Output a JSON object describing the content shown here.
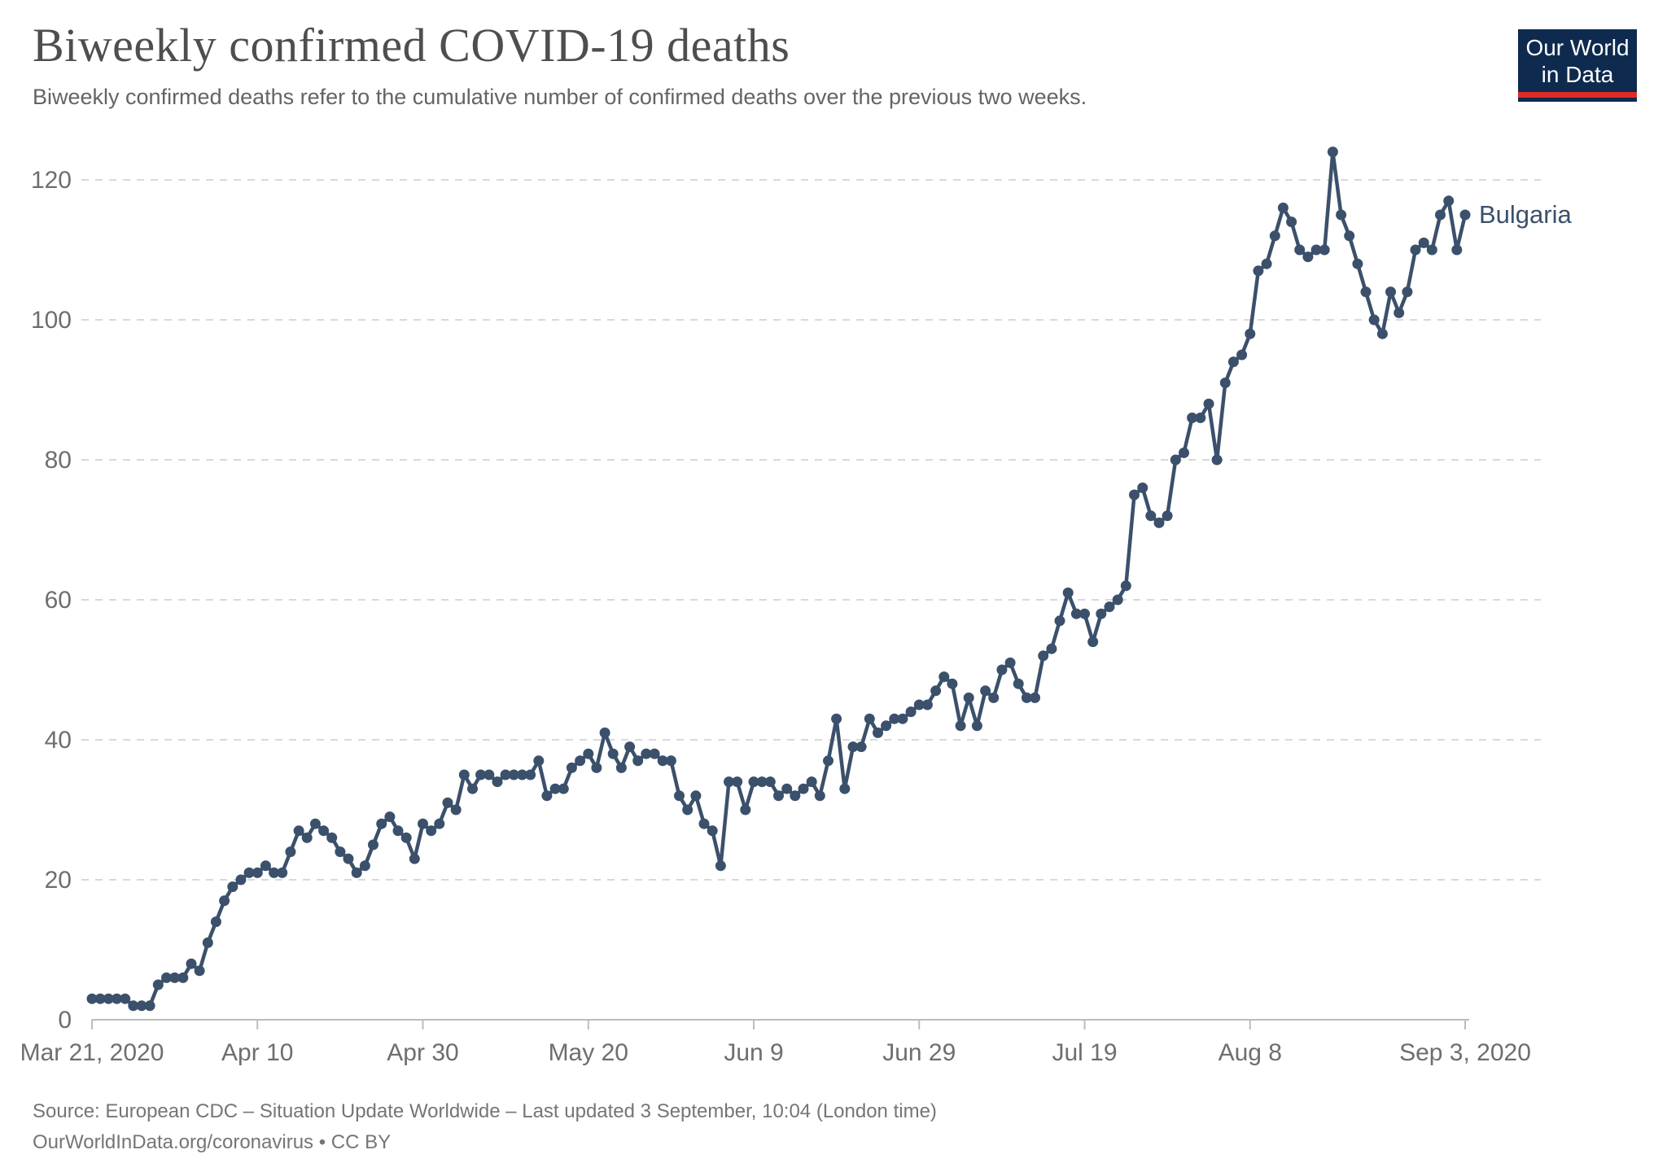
{
  "header": {
    "title": "Biweekly confirmed COVID-19 deaths",
    "subtitle": "Biweekly confirmed deaths refer to the cumulative number of confirmed deaths over the previous two weeks."
  },
  "logo": {
    "line1": "Our World",
    "line2": "in Data"
  },
  "footer": {
    "source_line1": "Source: European CDC – Situation Update Worldwide – Last updated 3 September, 10:04 (London time)",
    "source_line2": "OurWorldInData.org/coronavirus • CC BY"
  },
  "colors": {
    "line": "#3b506b",
    "grid": "#d9d9d9",
    "axis": "#bcbcbc",
    "tick_text": "#6e6e6e",
    "title_text": "#4e4e4e",
    "logo_navy": "#0e2a4e",
    "logo_red": "#dd2c27"
  },
  "chart_data": {
    "type": "line",
    "title": "Biweekly confirmed COVID-19 deaths",
    "entity": "Bulgaria",
    "start_date": "2020-03-21",
    "end_date": "2020-09-03",
    "x_span_days": 166,
    "ylim": [
      0,
      120
    ],
    "y_ticks": [
      0,
      20,
      40,
      60,
      80,
      100,
      120
    ],
    "grid": true,
    "legend_position": "end-of-line-label",
    "x_ticks": [
      {
        "day": 0,
        "label": "Mar 21, 2020"
      },
      {
        "day": 20,
        "label": "Apr 10"
      },
      {
        "day": 40,
        "label": "Apr 30"
      },
      {
        "day": 60,
        "label": "May 20"
      },
      {
        "day": 80,
        "label": "Jun 9"
      },
      {
        "day": 100,
        "label": "Jun 29"
      },
      {
        "day": 120,
        "label": "Jul 19"
      },
      {
        "day": 140,
        "label": "Aug 8"
      },
      {
        "day": 166,
        "label": "Sep 3, 2020"
      }
    ],
    "series": [
      {
        "name": "Bulgaria",
        "values": [
          3,
          3,
          3,
          3,
          3,
          2,
          2,
          2,
          5,
          6,
          6,
          6,
          8,
          7,
          11,
          14,
          17,
          19,
          20,
          21,
          21,
          22,
          21,
          21,
          24,
          27,
          26,
          28,
          27,
          26,
          24,
          23,
          21,
          22,
          25,
          28,
          29,
          27,
          26,
          23,
          28,
          27,
          28,
          31,
          30,
          35,
          33,
          35,
          35,
          34,
          35,
          35,
          35,
          35,
          37,
          32,
          33,
          33,
          36,
          37,
          38,
          36,
          41,
          38,
          36,
          39,
          37,
          38,
          38,
          37,
          37,
          32,
          30,
          32,
          28,
          27,
          22,
          34,
          34,
          30,
          34,
          34,
          34,
          32,
          33,
          32,
          33,
          34,
          32,
          37,
          43,
          33,
          39,
          39,
          43,
          41,
          42,
          43,
          43,
          44,
          45,
          45,
          47,
          49,
          48,
          42,
          46,
          42,
          47,
          46,
          50,
          51,
          48,
          46,
          46,
          52,
          53,
          57,
          61,
          58,
          58,
          54,
          58,
          59,
          60,
          62,
          75,
          76,
          72,
          71,
          72,
          80,
          81,
          86,
          86,
          88,
          80,
          91,
          94,
          95,
          98,
          107,
          108,
          112,
          116,
          114,
          110,
          109,
          110,
          110,
          124,
          115,
          112,
          108,
          104,
          100,
          98,
          104,
          101,
          104,
          110,
          111,
          110,
          115,
          117,
          110,
          115
        ]
      }
    ]
  }
}
